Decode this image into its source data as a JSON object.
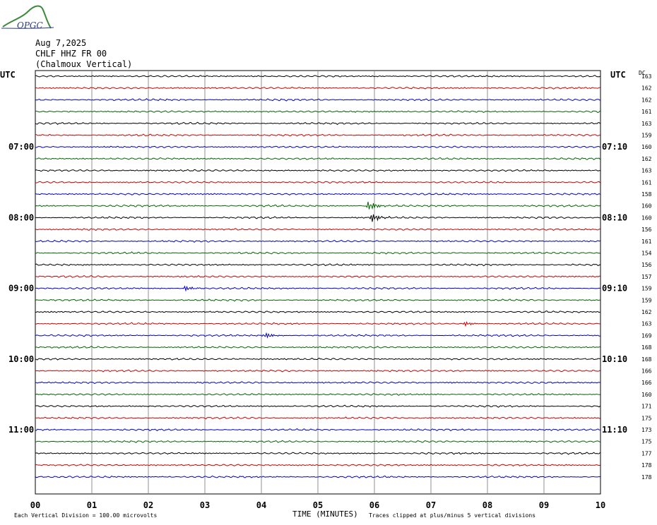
{
  "header": {
    "logo_text": "OPGC",
    "date": "Aug 7,2025",
    "station_line": "CHLF HHZ FR 00",
    "station_name": "(Chalmoux Vertical)"
  },
  "axes": {
    "left_label": "UTC",
    "right_label": "UTC",
    "dc_label": "DC",
    "xlabel": "TIME (MINUTES)",
    "x_ticks": [
      "00",
      "01",
      "02",
      "03",
      "04",
      "05",
      "06",
      "07",
      "08",
      "09",
      "10"
    ]
  },
  "footer": {
    "left_note": "Each Vertical Division =  100.00 microvolts",
    "right_note": "Traces clipped at plus/minus 5 vertical divisions"
  },
  "chart_data": {
    "type": "line",
    "title": "",
    "xlabel": "TIME (MINUTES)",
    "xlim": [
      0,
      10
    ],
    "grid": true,
    "trace_colors": [
      "#000000",
      "#cc0000",
      "#0000cc",
      "#006600"
    ],
    "left_hour_labels": [
      {
        "row": 6,
        "label": "07:00"
      },
      {
        "row": 12,
        "label": "08:00"
      },
      {
        "row": 18,
        "label": "09:00"
      },
      {
        "row": 24,
        "label": "10:00"
      },
      {
        "row": 30,
        "label": "11:00"
      }
    ],
    "right_hour_labels": [
      {
        "row": 6,
        "label": "07:10"
      },
      {
        "row": 12,
        "label": "08:10"
      },
      {
        "row": 18,
        "label": "09:10"
      },
      {
        "row": 24,
        "label": "10:10"
      },
      {
        "row": 30,
        "label": "11:10"
      }
    ],
    "dc_values": [
      "163",
      "162",
      "162",
      "161",
      "163",
      "159",
      "160",
      "162",
      "163",
      "161",
      "158",
      "160",
      "160",
      "156",
      "161",
      "154",
      "156",
      "157",
      "159",
      "159",
      "162",
      "163",
      "169",
      "168",
      "168",
      "166",
      "166",
      "160",
      "171",
      "175",
      "173",
      "175",
      "177",
      "178",
      "178"
    ],
    "events": [
      {
        "row": 11,
        "minute": 5.9,
        "amplitude": 2.2
      },
      {
        "row": 12,
        "minute": 5.95,
        "amplitude": 2.0
      },
      {
        "row": 18,
        "minute": 2.65,
        "amplitude": 1.2
      },
      {
        "row": 21,
        "minute": 7.6,
        "amplitude": 0.9
      },
      {
        "row": 22,
        "minute": 4.05,
        "amplitude": 1.4
      }
    ]
  }
}
